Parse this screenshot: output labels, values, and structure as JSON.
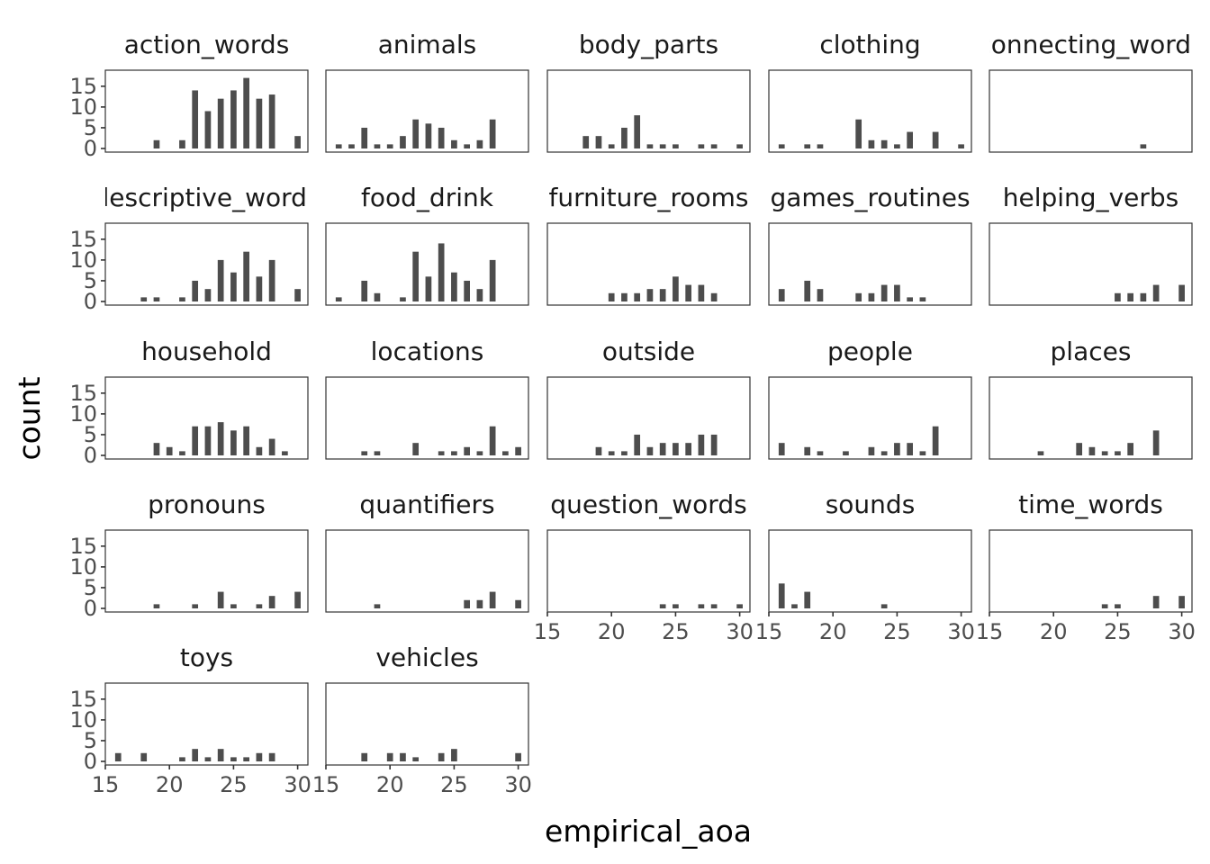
{
  "chart_data": {
    "type": "bar",
    "layout": "faceted histogram grid",
    "xlabel": "empirical_aoa",
    "ylabel": "count",
    "x_ticks": [
      15,
      20,
      25,
      30
    ],
    "y_ticks": [
      0,
      5,
      10,
      15
    ],
    "xlim": [
      15,
      30.8
    ],
    "ylim": [
      0,
      18
    ],
    "bar_color": "#4d4d4d",
    "grid": false,
    "facets": [
      {
        "name": "action_words",
        "bars": [
          {
            "x": 19,
            "y": 2
          },
          {
            "x": 21,
            "y": 2
          },
          {
            "x": 22,
            "y": 14
          },
          {
            "x": 23,
            "y": 9
          },
          {
            "x": 24,
            "y": 12
          },
          {
            "x": 25,
            "y": 14
          },
          {
            "x": 26,
            "y": 17
          },
          {
            "x": 27,
            "y": 12
          },
          {
            "x": 28,
            "y": 13
          },
          {
            "x": 30,
            "y": 3
          }
        ]
      },
      {
        "name": "animals",
        "bars": [
          {
            "x": 16,
            "y": 1
          },
          {
            "x": 17,
            "y": 1
          },
          {
            "x": 18,
            "y": 5
          },
          {
            "x": 19,
            "y": 1
          },
          {
            "x": 20,
            "y": 1
          },
          {
            "x": 21,
            "y": 3
          },
          {
            "x": 22,
            "y": 7
          },
          {
            "x": 23,
            "y": 6
          },
          {
            "x": 24,
            "y": 5
          },
          {
            "x": 25,
            "y": 2
          },
          {
            "x": 26,
            "y": 1
          },
          {
            "x": 27,
            "y": 2
          },
          {
            "x": 28,
            "y": 7
          }
        ]
      },
      {
        "name": "body_parts",
        "bars": [
          {
            "x": 18,
            "y": 3
          },
          {
            "x": 19,
            "y": 3
          },
          {
            "x": 20,
            "y": 1
          },
          {
            "x": 21,
            "y": 5
          },
          {
            "x": 22,
            "y": 8
          },
          {
            "x": 23,
            "y": 1
          },
          {
            "x": 24,
            "y": 1
          },
          {
            "x": 25,
            "y": 1
          },
          {
            "x": 27,
            "y": 1
          },
          {
            "x": 28,
            "y": 1
          },
          {
            "x": 30,
            "y": 1
          }
        ]
      },
      {
        "name": "clothing",
        "bars": [
          {
            "x": 16,
            "y": 1
          },
          {
            "x": 18,
            "y": 1
          },
          {
            "x": 19,
            "y": 1
          },
          {
            "x": 22,
            "y": 7
          },
          {
            "x": 23,
            "y": 2
          },
          {
            "x": 24,
            "y": 2
          },
          {
            "x": 25,
            "y": 1
          },
          {
            "x": 26,
            "y": 4
          },
          {
            "x": 28,
            "y": 4
          },
          {
            "x": 30,
            "y": 1
          }
        ]
      },
      {
        "name": "connecting_words",
        "bars": [
          {
            "x": 27,
            "y": 1
          }
        ]
      },
      {
        "name": "descriptive_words",
        "bars": [
          {
            "x": 18,
            "y": 1
          },
          {
            "x": 19,
            "y": 1
          },
          {
            "x": 21,
            "y": 1
          },
          {
            "x": 22,
            "y": 5
          },
          {
            "x": 23,
            "y": 3
          },
          {
            "x": 24,
            "y": 10
          },
          {
            "x": 25,
            "y": 7
          },
          {
            "x": 26,
            "y": 12
          },
          {
            "x": 27,
            "y": 6
          },
          {
            "x": 28,
            "y": 10
          },
          {
            "x": 30,
            "y": 3
          }
        ]
      },
      {
        "name": "food_drink",
        "bars": [
          {
            "x": 16,
            "y": 1
          },
          {
            "x": 18,
            "y": 5
          },
          {
            "x": 19,
            "y": 2
          },
          {
            "x": 21,
            "y": 1
          },
          {
            "x": 22,
            "y": 12
          },
          {
            "x": 23,
            "y": 6
          },
          {
            "x": 24,
            "y": 14
          },
          {
            "x": 25,
            "y": 7
          },
          {
            "x": 26,
            "y": 5
          },
          {
            "x": 27,
            "y": 3
          },
          {
            "x": 28,
            "y": 10
          }
        ]
      },
      {
        "name": "furniture_rooms",
        "bars": [
          {
            "x": 20,
            "y": 2
          },
          {
            "x": 21,
            "y": 2
          },
          {
            "x": 22,
            "y": 2
          },
          {
            "x": 23,
            "y": 3
          },
          {
            "x": 24,
            "y": 3
          },
          {
            "x": 25,
            "y": 6
          },
          {
            "x": 26,
            "y": 4
          },
          {
            "x": 27,
            "y": 4
          },
          {
            "x": 28,
            "y": 2
          }
        ]
      },
      {
        "name": "games_routines",
        "bars": [
          {
            "x": 16,
            "y": 3
          },
          {
            "x": 18,
            "y": 5
          },
          {
            "x": 19,
            "y": 3
          },
          {
            "x": 22,
            "y": 2
          },
          {
            "x": 23,
            "y": 2
          },
          {
            "x": 24,
            "y": 4
          },
          {
            "x": 25,
            "y": 4
          },
          {
            "x": 26,
            "y": 1
          },
          {
            "x": 27,
            "y": 1
          }
        ]
      },
      {
        "name": "helping_verbs",
        "bars": [
          {
            "x": 25,
            "y": 2
          },
          {
            "x": 26,
            "y": 2
          },
          {
            "x": 27,
            "y": 2
          },
          {
            "x": 28,
            "y": 4
          },
          {
            "x": 30,
            "y": 4
          }
        ]
      },
      {
        "name": "household",
        "bars": [
          {
            "x": 19,
            "y": 3
          },
          {
            "x": 20,
            "y": 2
          },
          {
            "x": 21,
            "y": 1
          },
          {
            "x": 22,
            "y": 7
          },
          {
            "x": 23,
            "y": 7
          },
          {
            "x": 24,
            "y": 8
          },
          {
            "x": 25,
            "y": 6
          },
          {
            "x": 26,
            "y": 7
          },
          {
            "x": 27,
            "y": 2
          },
          {
            "x": 28,
            "y": 4
          },
          {
            "x": 29,
            "y": 1
          }
        ]
      },
      {
        "name": "locations",
        "bars": [
          {
            "x": 18,
            "y": 1
          },
          {
            "x": 19,
            "y": 1
          },
          {
            "x": 22,
            "y": 3
          },
          {
            "x": 24,
            "y": 1
          },
          {
            "x": 25,
            "y": 1
          },
          {
            "x": 26,
            "y": 2
          },
          {
            "x": 27,
            "y": 1
          },
          {
            "x": 28,
            "y": 7
          },
          {
            "x": 29,
            "y": 1
          },
          {
            "x": 30,
            "y": 2
          }
        ]
      },
      {
        "name": "outside",
        "bars": [
          {
            "x": 19,
            "y": 2
          },
          {
            "x": 20,
            "y": 1
          },
          {
            "x": 21,
            "y": 1
          },
          {
            "x": 22,
            "y": 5
          },
          {
            "x": 23,
            "y": 2
          },
          {
            "x": 24,
            "y": 3
          },
          {
            "x": 25,
            "y": 3
          },
          {
            "x": 26,
            "y": 3
          },
          {
            "x": 27,
            "y": 5
          },
          {
            "x": 28,
            "y": 5
          }
        ]
      },
      {
        "name": "people",
        "bars": [
          {
            "x": 16,
            "y": 3
          },
          {
            "x": 18,
            "y": 2
          },
          {
            "x": 19,
            "y": 1
          },
          {
            "x": 21,
            "y": 1
          },
          {
            "x": 23,
            "y": 2
          },
          {
            "x": 24,
            "y": 1
          },
          {
            "x": 25,
            "y": 3
          },
          {
            "x": 26,
            "y": 3
          },
          {
            "x": 27,
            "y": 1
          },
          {
            "x": 28,
            "y": 7
          }
        ]
      },
      {
        "name": "places",
        "bars": [
          {
            "x": 19,
            "y": 1
          },
          {
            "x": 22,
            "y": 3
          },
          {
            "x": 23,
            "y": 2
          },
          {
            "x": 24,
            "y": 1
          },
          {
            "x": 25,
            "y": 1
          },
          {
            "x": 26,
            "y": 3
          },
          {
            "x": 28,
            "y": 6
          }
        ]
      },
      {
        "name": "pronouns",
        "bars": [
          {
            "x": 19,
            "y": 1
          },
          {
            "x": 22,
            "y": 1
          },
          {
            "x": 24,
            "y": 4
          },
          {
            "x": 25,
            "y": 1
          },
          {
            "x": 27,
            "y": 1
          },
          {
            "x": 28,
            "y": 3
          },
          {
            "x": 30,
            "y": 4
          }
        ]
      },
      {
        "name": "quantifiers",
        "bars": [
          {
            "x": 19,
            "y": 1
          },
          {
            "x": 26,
            "y": 2
          },
          {
            "x": 27,
            "y": 2
          },
          {
            "x": 28,
            "y": 4
          },
          {
            "x": 30,
            "y": 2
          }
        ]
      },
      {
        "name": "question_words",
        "bars": [
          {
            "x": 24,
            "y": 1
          },
          {
            "x": 25,
            "y": 1
          },
          {
            "x": 27,
            "y": 1
          },
          {
            "x": 28,
            "y": 1
          },
          {
            "x": 30,
            "y": 1
          }
        ]
      },
      {
        "name": "sounds",
        "bars": [
          {
            "x": 16,
            "y": 6
          },
          {
            "x": 17,
            "y": 1
          },
          {
            "x": 18,
            "y": 4
          },
          {
            "x": 24,
            "y": 1
          }
        ]
      },
      {
        "name": "time_words",
        "bars": [
          {
            "x": 24,
            "y": 1
          },
          {
            "x": 25,
            "y": 1
          },
          {
            "x": 28,
            "y": 3
          },
          {
            "x": 30,
            "y": 3
          }
        ]
      },
      {
        "name": "toys",
        "bars": [
          {
            "x": 16,
            "y": 2
          },
          {
            "x": 18,
            "y": 2
          },
          {
            "x": 21,
            "y": 1
          },
          {
            "x": 22,
            "y": 3
          },
          {
            "x": 23,
            "y": 1
          },
          {
            "x": 24,
            "y": 3
          },
          {
            "x": 25,
            "y": 1
          },
          {
            "x": 26,
            "y": 1
          },
          {
            "x": 27,
            "y": 2
          },
          {
            "x": 28,
            "y": 2
          }
        ]
      },
      {
        "name": "vehicles",
        "bars": [
          {
            "x": 18,
            "y": 2
          },
          {
            "x": 20,
            "y": 2
          },
          {
            "x": 21,
            "y": 2
          },
          {
            "x": 22,
            "y": 1
          },
          {
            "x": 24,
            "y": 2
          },
          {
            "x": 25,
            "y": 3
          },
          {
            "x": 30,
            "y": 2
          }
        ]
      }
    ]
  }
}
